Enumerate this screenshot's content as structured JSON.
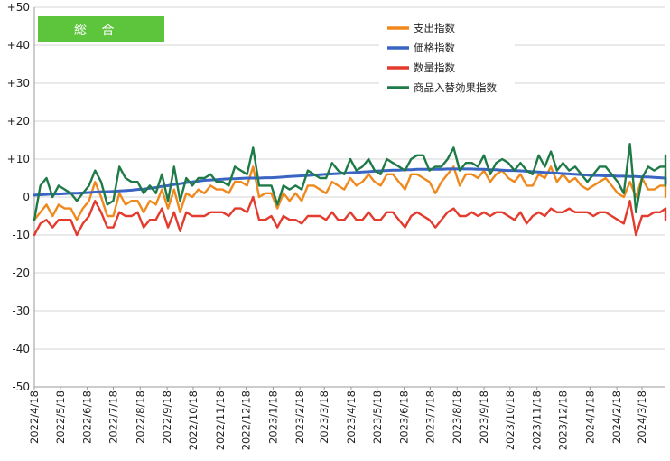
{
  "chart_data": {
    "type": "line",
    "title": "総 合",
    "title_bg_color": "#5cc53c",
    "ylim": [
      -50,
      50
    ],
    "y_ticks": [
      50,
      40,
      30,
      20,
      10,
      0,
      -10,
      -20,
      -30,
      -40,
      -50
    ],
    "y_tick_labels": [
      "+50",
      "+40",
      "+30",
      "+20",
      "+10",
      "0",
      "-10",
      "-20",
      "-30",
      "-40",
      "-50"
    ],
    "x_ticks": [
      "2022/4/18",
      "2022/5/18",
      "2022/6/18",
      "2022/7/18",
      "2022/8/18",
      "2022/9/18",
      "2022/10/18",
      "2022/11/18",
      "2022/12/18",
      "2023/1/18",
      "2023/2/18",
      "2023/3/18",
      "2023/4/18",
      "2023/5/18",
      "2023/6/18",
      "2023/7/18",
      "2023/8/18",
      "2023/9/18",
      "2023/10/18",
      "2023/11/18",
      "2023/12/18",
      "2024/1/18",
      "2024/2/18",
      "2024/3/18"
    ],
    "xlim": [
      "2022/4/18",
      "2024/4/14"
    ],
    "x_step_days": 7,
    "grid": "horizontal",
    "legend_position": "top-right",
    "series": [
      {
        "name": "支出指数",
        "color": "#f0891d",
        "values": [
          -6,
          -4,
          -2,
          -5,
          -2,
          -3,
          -3,
          -6,
          -3,
          -1,
          4,
          0,
          -5,
          -5,
          1,
          -2,
          -1,
          -1,
          -4,
          -1,
          -2,
          2,
          -3,
          2,
          -4,
          1,
          0,
          2,
          1,
          3,
          2,
          2,
          1,
          4,
          4,
          3,
          8,
          0,
          1,
          1,
          -3,
          1,
          -1,
          1,
          -1,
          3,
          3,
          2,
          1,
          4,
          3,
          2,
          5,
          3,
          4,
          6,
          4,
          3,
          6,
          6,
          4,
          2,
          6,
          6,
          5,
          4,
          1,
          4,
          6,
          8,
          3,
          6,
          6,
          5,
          7,
          4,
          6,
          7,
          5,
          4,
          6,
          3,
          3,
          6,
          5,
          8,
          4,
          6,
          4,
          5,
          3,
          2,
          3,
          4,
          5,
          3,
          1,
          0,
          4,
          0,
          5,
          2,
          2,
          3,
          3,
          2,
          7,
          0,
          3,
          2,
          2,
          4,
          3,
          2,
          0
        ],
        "values_note": ""
      },
      {
        "name": "価格指数",
        "color": "#3a65c3",
        "values": [
          0.5,
          0.6,
          0.7,
          0.8,
          0.8,
          0.9,
          1.0,
          1.0,
          1.1,
          1.2,
          1.3,
          1.4,
          1.4,
          1.5,
          1.6,
          1.7,
          1.8,
          2.0,
          2.1,
          2.3,
          2.5,
          2.8,
          3.0,
          3.3,
          3.5,
          3.8,
          4.0,
          4.2,
          4.4,
          4.5,
          4.6,
          4.7,
          4.8,
          4.8,
          4.9,
          5.0,
          5.0,
          5.0,
          5.1,
          5.1,
          5.2,
          5.3,
          5.4,
          5.5,
          5.6,
          5.7,
          5.8,
          5.9,
          6.0,
          6.1,
          6.2,
          6.3,
          6.4,
          6.5,
          6.6,
          6.7,
          6.8,
          6.9,
          7.0,
          7.1,
          7.1,
          7.2,
          7.2,
          7.3,
          7.3,
          7.3,
          7.3,
          7.3,
          7.4,
          7.4,
          7.4,
          7.4,
          7.4,
          7.3,
          7.3,
          7.2,
          7.2,
          7.1,
          7.0,
          7.0,
          6.9,
          6.8,
          6.7,
          6.6,
          6.5,
          6.4,
          6.3,
          6.2,
          6.1,
          6.0,
          5.9,
          5.8,
          5.7,
          5.7,
          5.6,
          5.6,
          5.5,
          5.5,
          5.4,
          5.4,
          5.3,
          5.3,
          5.2,
          5.1,
          5.0,
          5.0,
          4.9,
          4.8,
          4.7,
          4.6,
          4.4,
          4.2,
          4.0,
          3.8,
          3.6
        ]
      },
      {
        "name": "数量指数",
        "color": "#e33b2d",
        "values": [
          -10,
          -7,
          -6,
          -8,
          -6,
          -6,
          -6,
          -10,
          -7,
          -5,
          -1,
          -4,
          -8,
          -8,
          -4,
          -5,
          -5,
          -4,
          -8,
          -6,
          -6,
          -3,
          -8,
          -4,
          -9,
          -4,
          -5,
          -5,
          -5,
          -4,
          -4,
          -4,
          -5,
          -3,
          -3,
          -4,
          0,
          -6,
          -6,
          -5,
          -8,
          -5,
          -6,
          -6,
          -7,
          -5,
          -5,
          -5,
          -6,
          -4,
          -6,
          -6,
          -4,
          -6,
          -6,
          -4,
          -6,
          -6,
          -4,
          -4,
          -6,
          -8,
          -5,
          -4,
          -5,
          -6,
          -8,
          -6,
          -4,
          -3,
          -5,
          -5,
          -4,
          -5,
          -4,
          -5,
          -4,
          -4,
          -5,
          -6,
          -4,
          -7,
          -5,
          -4,
          -5,
          -3,
          -4,
          -4,
          -3,
          -4,
          -4,
          -4,
          -5,
          -4,
          -4,
          -5,
          -6,
          -7,
          -1,
          -10,
          -5,
          -5,
          -4,
          -4,
          -3,
          -3,
          -6,
          -4,
          -5,
          -3,
          -4,
          -3,
          -4,
          -4,
          -5
        ]
      },
      {
        "name": "商品入替効果指数",
        "color": "#1e7a47",
        "values": [
          -6,
          3,
          5,
          0,
          3,
          2,
          1,
          -1,
          1,
          3,
          7,
          4,
          -2,
          -1,
          8,
          5,
          4,
          4,
          1,
          3,
          1,
          6,
          -1,
          8,
          -1,
          5,
          3,
          5,
          5,
          6,
          4,
          4,
          3,
          8,
          7,
          6,
          13,
          3,
          3,
          3,
          -2,
          3,
          2,
          3,
          2,
          7,
          6,
          5,
          5,
          9,
          7,
          6,
          10,
          7,
          8,
          10,
          7,
          6,
          10,
          9,
          8,
          7,
          10,
          11,
          11,
          7,
          8,
          8,
          10,
          13,
          7,
          9,
          9,
          8,
          11,
          6,
          9,
          10,
          9,
          7,
          9,
          7,
          6,
          11,
          8,
          12,
          7,
          9,
          7,
          8,
          6,
          4,
          6,
          8,
          8,
          6,
          4,
          1,
          14,
          -4,
          5,
          8,
          7,
          8,
          8,
          6,
          11,
          3,
          8,
          7,
          7,
          9,
          10,
          9,
          5
        ]
      }
    ]
  }
}
